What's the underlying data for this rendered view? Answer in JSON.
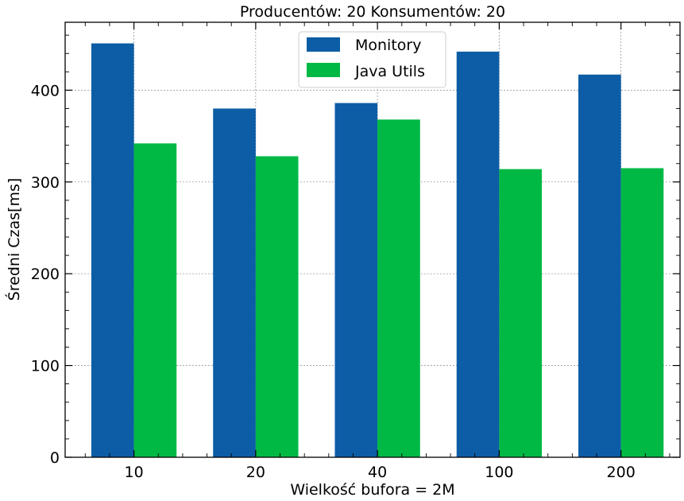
{
  "chart_data": {
    "type": "bar",
    "title": "Producentów: 20 Konsumentów: 20",
    "xlabel": "Wielkość bufora = 2M",
    "ylabel": "Średni Czas[ms]",
    "categories": [
      "10",
      "20",
      "40",
      "100",
      "200"
    ],
    "series": [
      {
        "name": "Monitory",
        "values": [
          451,
          380,
          386,
          442,
          417
        ],
        "color": "#0c5da5"
      },
      {
        "name": "Java Utils",
        "values": [
          342,
          328,
          368,
          314,
          315
        ],
        "color": "#00b945"
      }
    ],
    "ylim": [
      0,
      474
    ],
    "yticks": [
      0,
      100,
      200,
      300,
      400
    ],
    "ytick_labels": [
      "0",
      "100",
      "200",
      "300",
      "400"
    ],
    "grid": true,
    "legend_position": "top-center"
  }
}
